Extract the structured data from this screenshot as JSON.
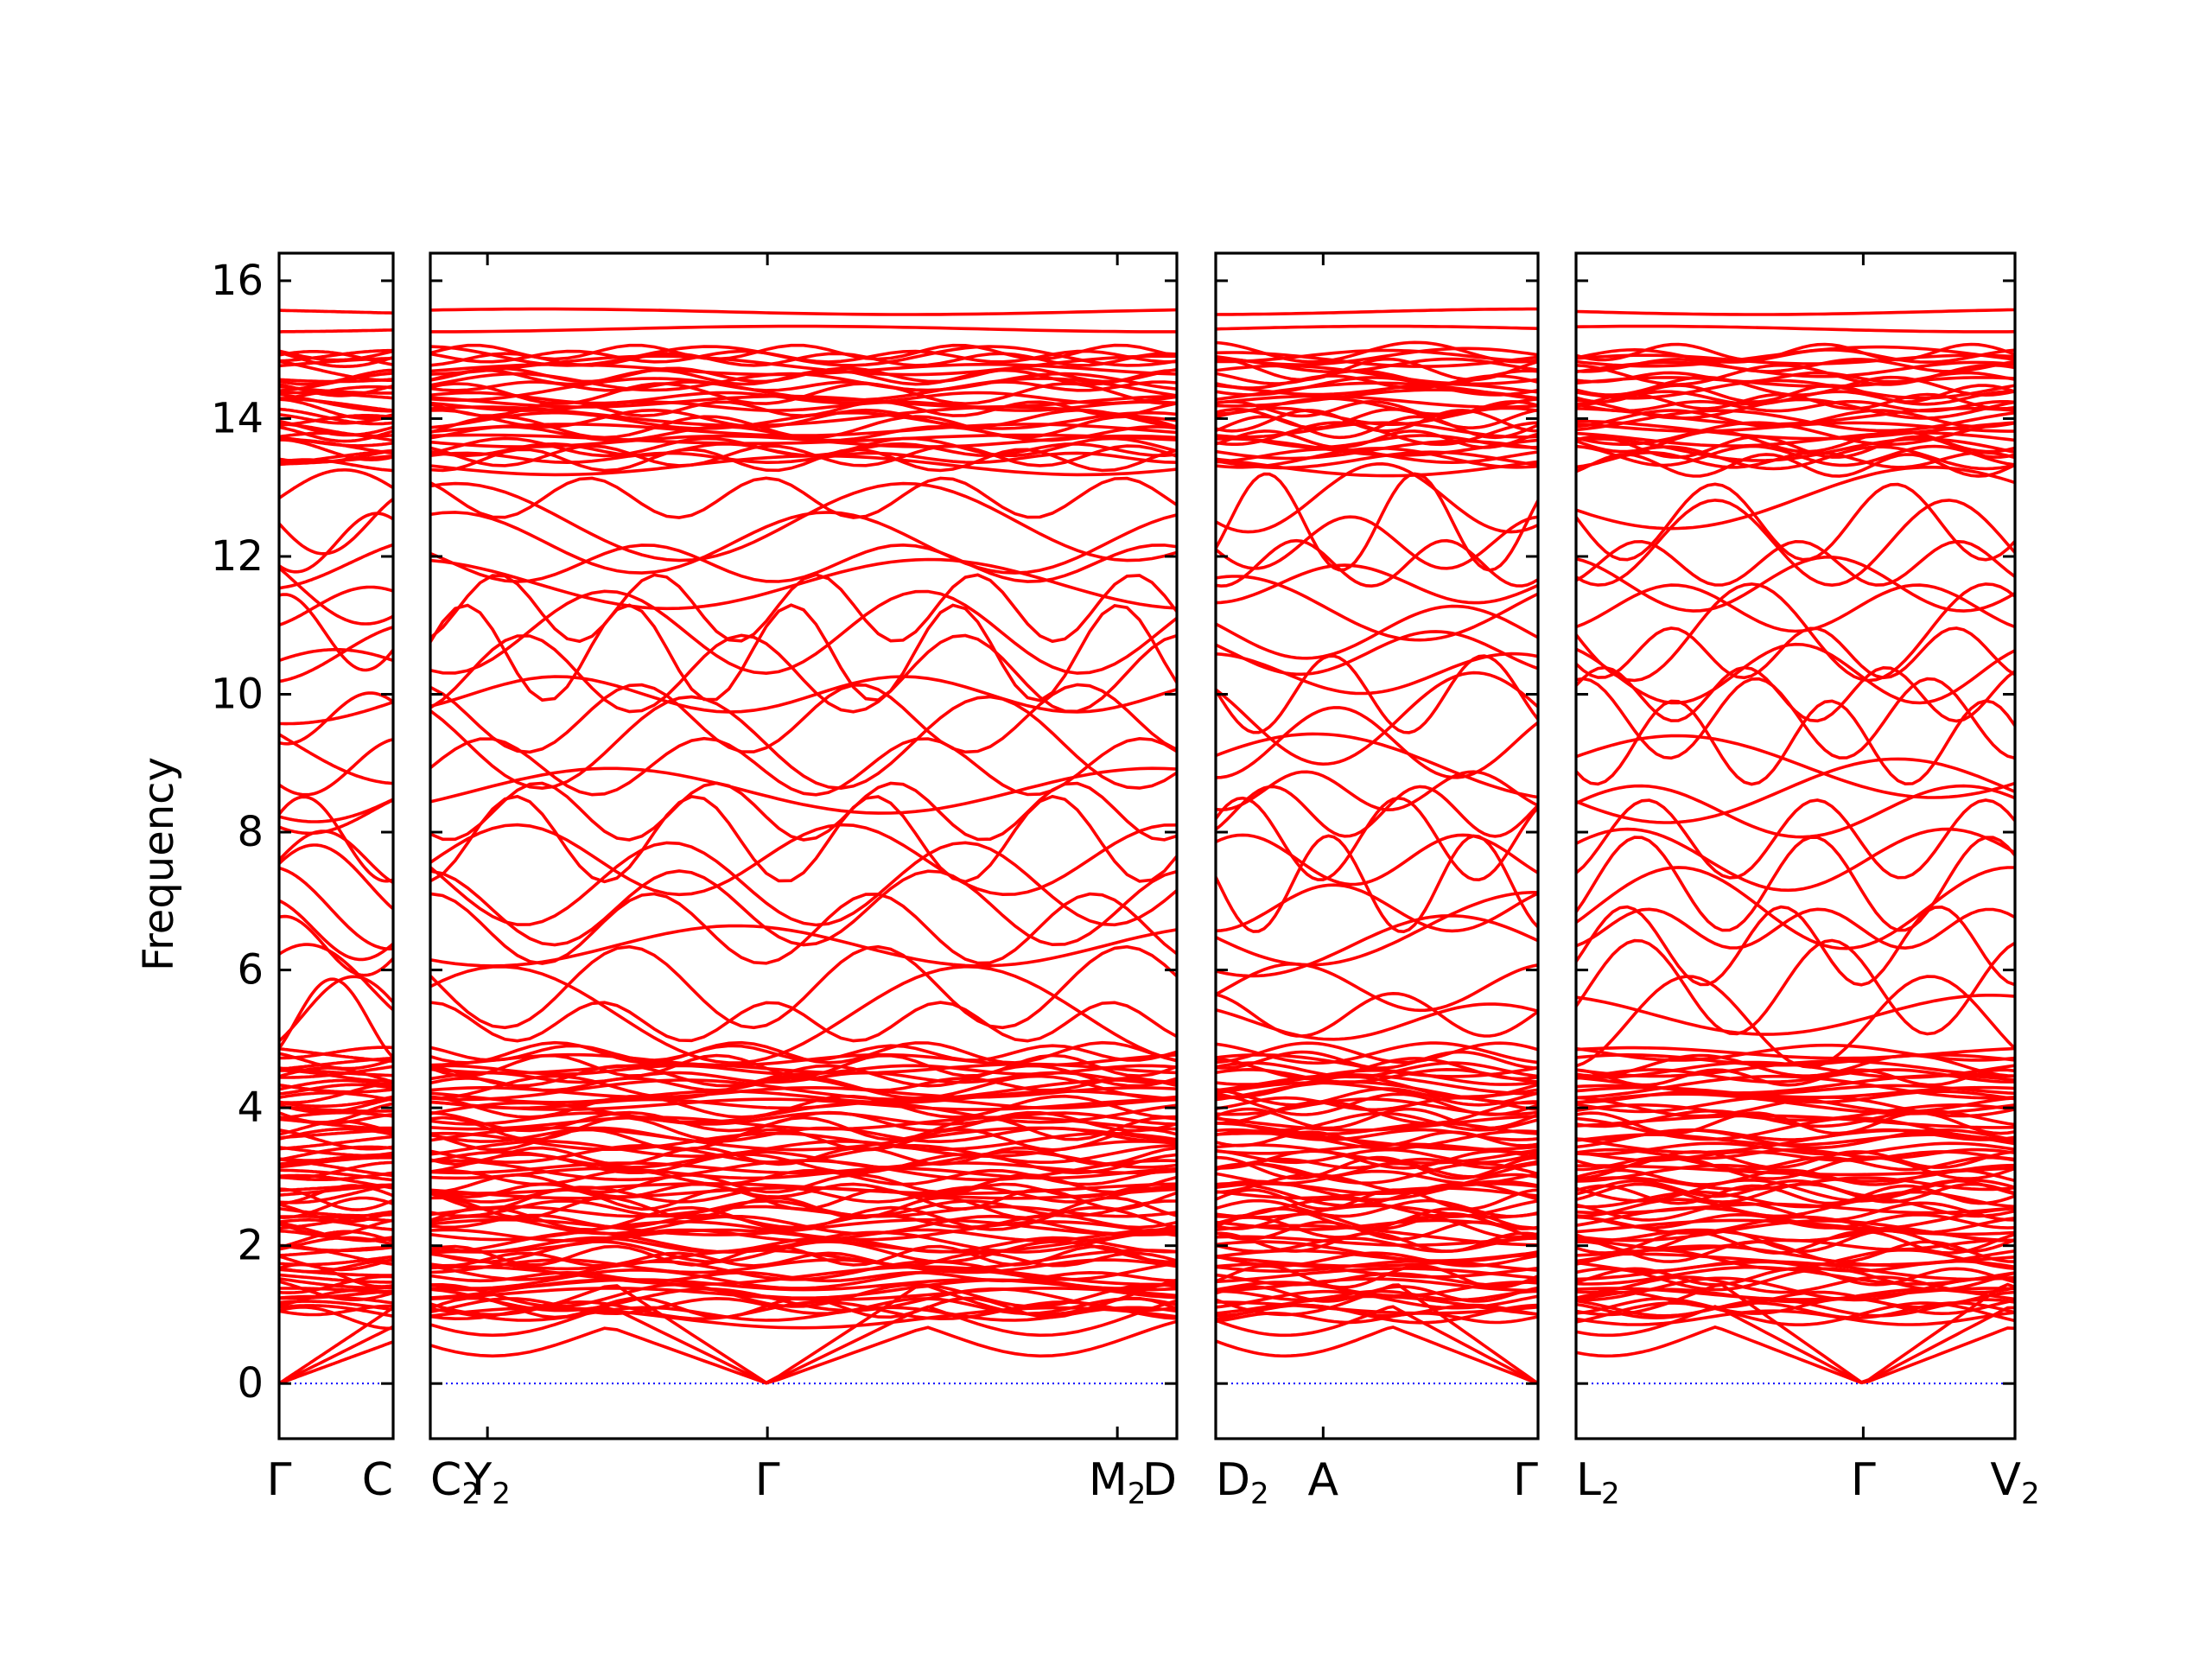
{
  "chart_data": {
    "type": "line",
    "title": "",
    "ylabel": "Frequency",
    "ylim": [
      -0.8,
      16.4
    ],
    "yticks": [
      "0",
      "2",
      "4",
      "6",
      "8",
      "10",
      "12",
      "14",
      "16"
    ],
    "series_color": "#ff0000",
    "zero_line_color": "#0000ff",
    "grid": false,
    "legend": "none",
    "panels": [
      {
        "id": "p1",
        "path": [
          "Γ",
          "C"
        ],
        "segment_lengths": [
          1.0
        ],
        "kpoint_labels": [
          {
            "base": "Γ",
            "sub": ""
          },
          {
            "base": "C",
            "sub": ""
          }
        ]
      },
      {
        "id": "p2",
        "path": [
          "C2",
          "Y2",
          "Γ",
          "M2",
          "D"
        ],
        "segment_lengths": [
          0.49,
          2.4,
          3.0,
          0.51
        ],
        "kpoint_labels": [
          {
            "base": "C",
            "sub": "2"
          },
          {
            "base": "Y",
            "sub": "2"
          },
          {
            "base": "Γ",
            "sub": ""
          },
          {
            "base": "M",
            "sub": "2"
          },
          {
            "base": "D",
            "sub": ""
          }
        ]
      },
      {
        "id": "p3",
        "path": [
          "D2",
          "A",
          "Γ"
        ],
        "segment_lengths": [
          1.0,
          2.0
        ],
        "kpoint_labels": [
          {
            "base": "D",
            "sub": "2"
          },
          {
            "base": "A",
            "sub": ""
          },
          {
            "base": "Γ",
            "sub": ""
          }
        ]
      },
      {
        "id": "p4",
        "path": [
          "L2",
          "Γ",
          "V2"
        ],
        "segment_lengths": [
          2.65,
          1.4
        ],
        "kpoint_labels": [
          {
            "base": "L",
            "sub": "2"
          },
          {
            "base": "Γ",
            "sub": ""
          },
          {
            "base": "V",
            "sub": "2"
          }
        ]
      }
    ],
    "band_structure": {
      "acoustic_branches": 3,
      "acoustic_zero_at": "Γ",
      "dense_regions": [
        [
          0.9,
          4.8
        ],
        [
          13.3,
          15.0
        ]
      ],
      "flat_bands_top": [
        15.3,
        15.55
      ],
      "optical_band_values_at_gamma": [
        0.0,
        0.0,
        0.0,
        1.1,
        1.3,
        1.55,
        1.8,
        2.05,
        2.3,
        2.55,
        2.8,
        3.05,
        3.3,
        3.55,
        3.8,
        4.05,
        4.3,
        4.55,
        4.8,
        5.25,
        5.35,
        5.75,
        6.35,
        6.6,
        6.9,
        7.25,
        7.6,
        7.9,
        8.3,
        8.6,
        8.95,
        9.3,
        9.65,
        10.0,
        10.3,
        10.6,
        10.9,
        11.25,
        11.6,
        11.9,
        12.2,
        12.5,
        12.85,
        13.4,
        13.7,
        14.0,
        14.3,
        14.6,
        14.9,
        15.3,
        15.55
      ]
    }
  }
}
